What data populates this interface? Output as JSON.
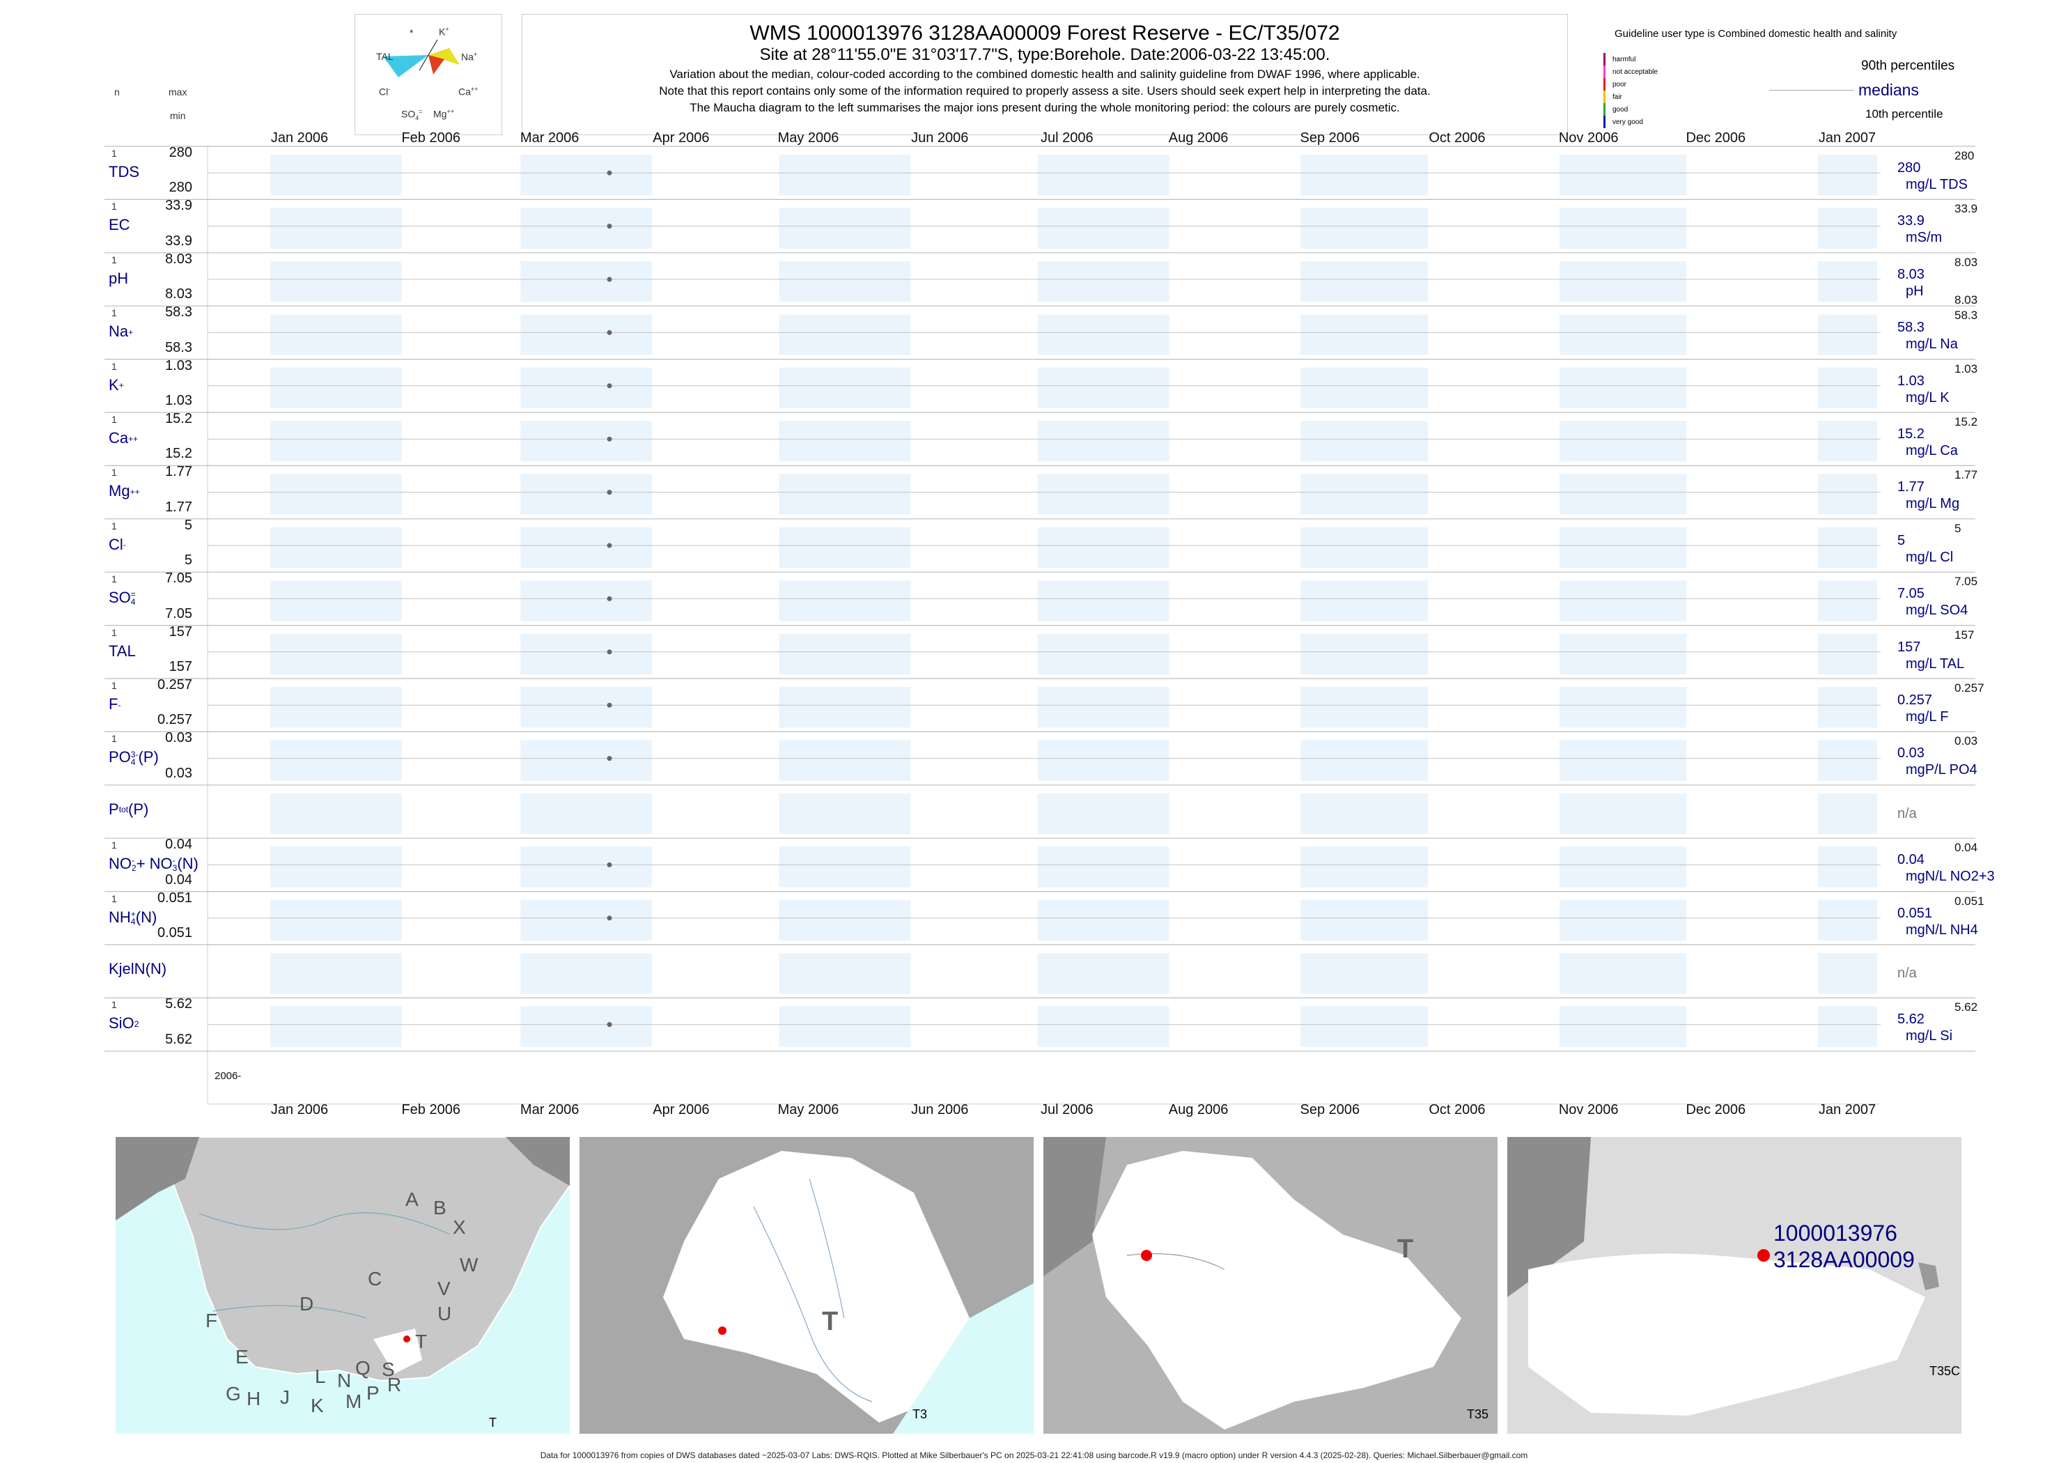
{
  "header": {
    "title": "WMS 1000013976 3128AA00009 Forest Reserve - EC/T35/072",
    "subtitle": "Site at 28°11'55.0\"E 31°03'17.7\"S, type:Borehole. Date:2006-03-22 13:45:00.",
    "note1": "Variation about the median,  colour-coded according to the combined domestic health and salinity guideline from DWAF 1996, where applicable.",
    "note2": "Note that this report contains only some of the information required to properly assess a site. Users should seek expert help in interpreting the data.",
    "note3": "The Maucha diagram to the left summarises the major ions present during the whole monitoring period: the colours are purely cosmetic."
  },
  "maucha": {
    "labels": {
      "k": "K",
      "na": "Na",
      "ca": "Ca",
      "mg": "Mg",
      "so4": "SO",
      "cl": "Cl",
      "tal": "TAL",
      "star": "*"
    }
  },
  "left_header": {
    "n": "n",
    "max": "max",
    "min": "min"
  },
  "legend": {
    "guideline": "Guideline user type is Combined domestic health and salinity",
    "p90": "90th percentiles",
    "medians": "medians",
    "p10": "10th percentile",
    "classes": [
      {
        "label": "harmful",
        "color": "#9a0072"
      },
      {
        "label": "not acceptable",
        "color": "#ff3ad6"
      },
      {
        "label": "poor",
        "color": "#e02020"
      },
      {
        "label": "fair",
        "color": "#f0c000"
      },
      {
        "label": "good",
        "color": "#20b020"
      },
      {
        "label": "very good",
        "color": "#1a1aa0"
      }
    ]
  },
  "chart_data": {
    "type": "scatter",
    "x_axis": {
      "start": "2006-01-01",
      "end": "2007-01-01",
      "tick_labels": [
        "Jan 2006",
        "Feb 2006",
        "Mar 2006",
        "Apr 2006",
        "May 2006",
        "Jun 2006",
        "Jul 2006",
        "Aug 2006",
        "Sep 2006",
        "Oct 2006",
        "Nov 2006",
        "Dec 2006",
        "Jan 2007"
      ]
    },
    "year_label": "2006-",
    "sample_date": "2006-03-22",
    "rows": [
      {
        "label": "TDS",
        "n": "1",
        "max": "280",
        "min": "280",
        "median": "280",
        "unit": "mg/L TDS",
        "p90": "280",
        "p10": "",
        "has_data": true
      },
      {
        "label": "EC",
        "n": "1",
        "max": "33.9",
        "min": "33.9",
        "median": "33.9",
        "unit": "mS/m",
        "p90": "33.9",
        "p10": "",
        "has_data": true
      },
      {
        "label": "pH",
        "n": "1",
        "max": "8.03",
        "min": "8.03",
        "median": "8.03",
        "unit": "pH",
        "p90": "8.03",
        "p10": "8.03",
        "has_data": true
      },
      {
        "label": "Na",
        "sup": "+",
        "n": "1",
        "max": "58.3",
        "min": "58.3",
        "median": "58.3",
        "unit": "mg/L Na",
        "p90": "58.3",
        "p10": "",
        "has_data": true
      },
      {
        "label": "K",
        "sup": "+",
        "n": "1",
        "max": "1.03",
        "min": "1.03",
        "median": "1.03",
        "unit": "mg/L K",
        "p90": "1.03",
        "p10": "",
        "has_data": true
      },
      {
        "label": "Ca",
        "sup": "++",
        "n": "1",
        "max": "15.2",
        "min": "15.2",
        "median": "15.2",
        "unit": "mg/L Ca",
        "p90": "15.2",
        "p10": "",
        "has_data": true
      },
      {
        "label": "Mg",
        "sup": "++",
        "n": "1",
        "max": "1.77",
        "min": "1.77",
        "median": "1.77",
        "unit": "mg/L Mg",
        "p90": "1.77",
        "p10": "",
        "has_data": true
      },
      {
        "label": "Cl",
        "sup": "-",
        "n": "1",
        "max": "5",
        "min": "5",
        "median": "5",
        "unit": "mg/L Cl",
        "p90": "5",
        "p10": "",
        "has_data": true
      },
      {
        "label": "SO",
        "sub": "4",
        "sup": "=",
        "n": "1",
        "max": "7.05",
        "min": "7.05",
        "median": "7.05",
        "unit": "mg/L SO4",
        "p90": "7.05",
        "p10": "",
        "has_data": true
      },
      {
        "label": "TAL",
        "n": "1",
        "max": "157",
        "min": "157",
        "median": "157",
        "unit": "mg/L TAL",
        "p90": "157",
        "p10": "",
        "has_data": true
      },
      {
        "label": "F",
        "sup": "-",
        "n": "1",
        "max": "0.257",
        "min": "0.257",
        "median": "0.257",
        "unit": "mg/L F",
        "p90": "0.257",
        "p10": "",
        "has_data": true
      },
      {
        "label": "PO",
        "sub": "4",
        "sup": "3-",
        "suffix": "(P)",
        "n": "1",
        "max": "0.03",
        "min": "0.03",
        "median": "0.03",
        "unit": "mgP/L PO4",
        "p90": "0.03",
        "p10": "",
        "has_data": true
      },
      {
        "label": "P",
        "sub": "tot",
        "suffix": "(P)",
        "n": "",
        "max": "",
        "min": "",
        "median": "n/a",
        "unit": "",
        "p90": "",
        "p10": "",
        "has_data": false
      },
      {
        "label": "NO",
        "sub": "2",
        "sup": "-",
        "suffix": "+ NO",
        "sub2": "3",
        "sup2": "-",
        "suffix2": "(N)",
        "n": "1",
        "max": "0.04",
        "min": "0.04",
        "median": "0.04",
        "unit": "mgN/L NO2+3",
        "p90": "0.04",
        "p10": "",
        "has_data": true
      },
      {
        "label": "NH",
        "sub": "4",
        "sup": "+",
        "suffix": "(N)",
        "n": "1",
        "max": "0.051",
        "min": "0.051",
        "median": "0.051",
        "unit": "mgN/L NH4",
        "p90": "0.051",
        "p10": "",
        "has_data": true
      },
      {
        "label": "KjelN(N)",
        "n": "",
        "max": "",
        "min": "",
        "median": "n/a",
        "unit": "",
        "p90": "",
        "p10": "",
        "has_data": false
      },
      {
        "label": "SiO",
        "sub": "2",
        "n": "1",
        "max": "5.62",
        "min": "5.62",
        "median": "5.62",
        "unit": "mg/L Si",
        "p90": "5.62",
        "p10": "",
        "has_data": true
      }
    ]
  },
  "maps": [
    {
      "corner": "T",
      "letters": [
        "A",
        "B",
        "X",
        "W",
        "C",
        "V",
        "D",
        "U",
        "T",
        "F",
        "E",
        "G",
        "H",
        "J",
        "L",
        "N",
        "Q",
        "S",
        "K",
        "M",
        "P",
        "R"
      ]
    },
    {
      "corner": "T3",
      "big": "T"
    },
    {
      "corner": "T35",
      "big": "T"
    },
    {
      "corner": "T35C",
      "site_id": "1000013976",
      "site_code": "3128AA00009"
    }
  ],
  "footer": "Data for 1000013976 from copies of DWS databases dated ~2025-03-07 Labs: DWS-RQIS. Plotted at Mike Silberbauer's PC on 2025-03-21 22:41:08 using barcode.R v19.9 (macro option) under R version 4.4.3 (2025-02-28). Queries: Michael.Silberbauer@gmail.com"
}
